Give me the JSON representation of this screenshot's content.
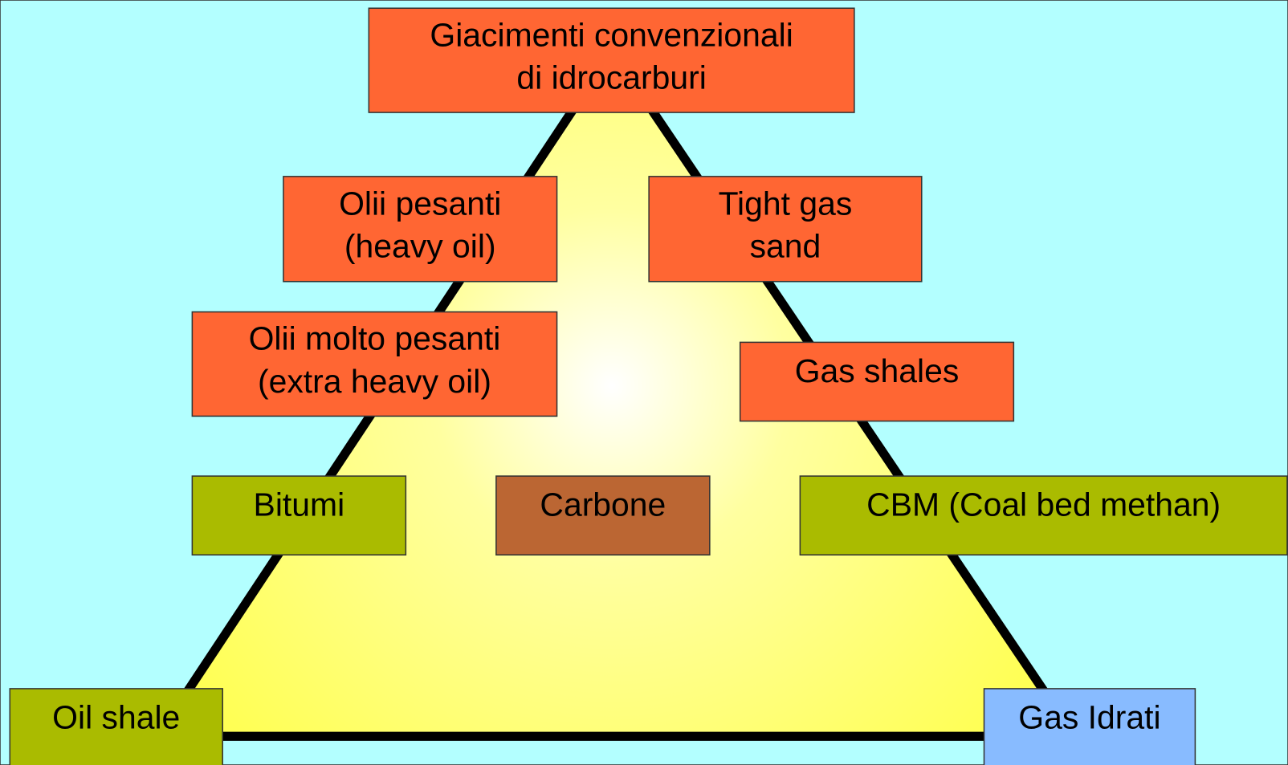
{
  "nodes": [
    {
      "lines": [
        "Giacimenti convenzionali",
        "di idrocarburi"
      ]
    },
    {
      "lines": [
        "Olii pesanti",
        "(heavy oil)"
      ]
    },
    {
      "lines": [
        "Tight gas",
        "sand"
      ]
    },
    {
      "lines": [
        "Olii molto pesanti",
        "(extra heavy oil)"
      ]
    },
    {
      "lines": [
        "Gas shales"
      ]
    },
    {
      "lines": [
        "Bitumi"
      ]
    },
    {
      "lines": [
        "Carbone"
      ]
    },
    {
      "lines": [
        "CBM (Coal bed methan)"
      ]
    },
    {
      "lines": [
        "Oil shale"
      ]
    },
    {
      "lines": [
        "Gas Idrati"
      ]
    }
  ]
}
